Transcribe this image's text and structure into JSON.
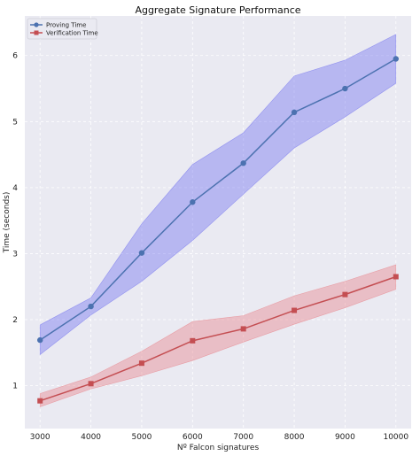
{
  "chart_data": {
    "type": "line",
    "title": "Aggregate Signature Performance",
    "xlabel": "Nº Falcon signatures",
    "ylabel": "Time (seconds)",
    "x": [
      3000,
      4000,
      5000,
      6000,
      7000,
      8000,
      9000,
      10000
    ],
    "xlim": [
      2700,
      10300
    ],
    "ylim": [
      0.35,
      6.6
    ],
    "x_ticks": [
      3000,
      4000,
      5000,
      6000,
      7000,
      8000,
      9000,
      10000
    ],
    "y_ticks": [
      1,
      2,
      3,
      4,
      5,
      6
    ],
    "grid": true,
    "legend_position": "top-left",
    "series": [
      {
        "name": "Proving Time",
        "marker": "circle",
        "color": "#4c72b0",
        "band_color": "#7b7bf0",
        "values": [
          1.69,
          2.2,
          3.01,
          3.78,
          4.37,
          5.14,
          5.5,
          5.95
        ],
        "upper": [
          1.92,
          2.33,
          3.45,
          4.35,
          4.83,
          5.69,
          5.93,
          6.32
        ],
        "lower": [
          1.47,
          2.07,
          2.58,
          3.2,
          3.9,
          4.6,
          5.07,
          5.58
        ]
      },
      {
        "name": "Verification Time",
        "marker": "square",
        "color": "#c44e52",
        "band_color": "#e88990",
        "values": [
          0.77,
          1.03,
          1.34,
          1.68,
          1.86,
          2.14,
          2.38,
          2.65
        ],
        "upper": [
          0.88,
          1.13,
          1.52,
          1.97,
          2.06,
          2.36,
          2.58,
          2.83
        ],
        "lower": [
          0.68,
          0.95,
          1.15,
          1.38,
          1.66,
          1.93,
          2.18,
          2.46
        ]
      }
    ]
  }
}
